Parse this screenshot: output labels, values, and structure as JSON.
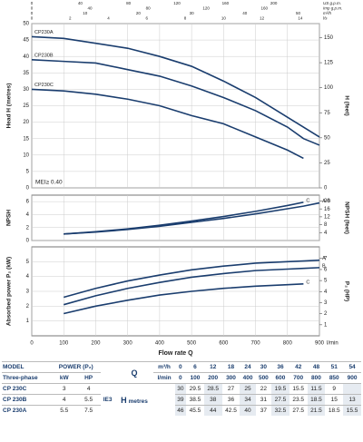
{
  "chart_data": [
    {
      "type": "line",
      "y_label": "Head H (metres)",
      "y2_label": "H (feet)",
      "annotation": "MEI≥ 0.40",
      "x": [
        0,
        100,
        200,
        300,
        400,
        500,
        600,
        700,
        800,
        850,
        900
      ],
      "series": [
        {
          "name": "CP230A",
          "color": "#1a3d6e",
          "values": [
            46,
            45.5,
            44,
            42.5,
            40,
            37,
            32.5,
            27.5,
            21.5,
            18.5,
            15.5
          ]
        },
        {
          "name": "CP230B",
          "color": "#1a3d6e",
          "values": [
            39,
            38.5,
            38,
            36,
            34,
            31,
            27.5,
            23.5,
            18.5,
            15,
            13
          ]
        },
        {
          "name": "CP230C",
          "color": "#1a3d6e",
          "values": [
            30,
            29.5,
            28.5,
            27,
            25,
            22,
            19.5,
            15.5,
            11.5,
            9,
            null
          ]
        }
      ],
      "xlim": [
        0,
        900
      ],
      "xticks": [
        0,
        100,
        200,
        300,
        400,
        500,
        600,
        700,
        800,
        900
      ],
      "ylim": [
        0,
        50
      ],
      "yticks": [
        0,
        5,
        10,
        15,
        20,
        25,
        30,
        35,
        40,
        45,
        50
      ],
      "y2lim": [
        0,
        164.04
      ],
      "y2ticks": [
        0,
        25,
        50,
        75,
        100,
        125,
        150
      ],
      "grid": true,
      "top_axes": [
        {
          "label": "US g.p.m.",
          "lim": [
            0,
            237.75
          ],
          "ticks": [
            0,
            40,
            80,
            120,
            160,
            200
          ]
        },
        {
          "label": "Imp g.p.m.",
          "lim": [
            0,
            197.97
          ],
          "ticks": [
            0,
            40,
            80,
            120,
            160
          ]
        },
        {
          "label": "m³/h",
          "lim": [
            0,
            54
          ],
          "ticks": [
            0,
            10,
            20,
            30,
            40,
            50
          ]
        },
        {
          "label": "l/s",
          "lim": [
            0,
            15
          ],
          "ticks": [
            0,
            2,
            4,
            6,
            8,
            10,
            12,
            14
          ]
        }
      ]
    },
    {
      "type": "line",
      "y_label": "NPSH",
      "y2_label": "NPSH (feet)",
      "x": [
        100,
        200,
        300,
        400,
        500,
        600,
        700,
        800,
        850,
        900
      ],
      "series": [
        {
          "name": "C",
          "color": "#1a3d6e",
          "values": [
            1.0,
            1.35,
            1.8,
            2.35,
            3.0,
            3.7,
            4.5,
            5.4,
            5.9,
            null
          ]
        },
        {
          "name": "A-B",
          "color": "#1a3d6e",
          "values": [
            1.0,
            1.3,
            1.7,
            2.2,
            2.8,
            3.4,
            4.1,
            4.9,
            5.3,
            5.8
          ]
        }
      ],
      "xlim": [
        0,
        900
      ],
      "xticks": [
        0,
        100,
        200,
        300,
        400,
        500,
        600,
        700,
        800,
        900
      ],
      "ylim": [
        0,
        7
      ],
      "yticks": [
        0,
        2,
        4,
        6
      ],
      "y2lim": [
        0,
        22.97
      ],
      "y2ticks": [
        4,
        8,
        12,
        16,
        20
      ],
      "grid": true
    },
    {
      "type": "line",
      "y_label": "Absorbed power P₂ (kW)",
      "y2_label": "P₂ (HP)",
      "x_label": "Flow rate Q",
      "x_unit": "l/min",
      "x": [
        100,
        200,
        300,
        400,
        500,
        600,
        700,
        800,
        850,
        900
      ],
      "series": [
        {
          "name": "A",
          "color": "#1a3d6e",
          "values": [
            2.6,
            3.2,
            3.7,
            4.1,
            4.45,
            4.7,
            4.9,
            5.0,
            5.05,
            5.1
          ]
        },
        {
          "name": "B",
          "color": "#1a3d6e",
          "values": [
            2.1,
            2.7,
            3.2,
            3.6,
            3.95,
            4.2,
            4.4,
            4.5,
            4.55,
            4.6
          ]
        },
        {
          "name": "C",
          "color": "#1a3d6e",
          "values": [
            1.5,
            2.0,
            2.4,
            2.75,
            3.0,
            3.2,
            3.35,
            3.45,
            3.5,
            null
          ]
        }
      ],
      "xlim": [
        0,
        900
      ],
      "xticks": [
        0,
        100,
        200,
        300,
        400,
        500,
        600,
        700,
        800,
        900
      ],
      "ylim": [
        0,
        6
      ],
      "yticks": [
        1,
        2,
        3,
        4,
        5
      ],
      "y2lim": [
        0,
        8.05
      ],
      "y2ticks": [
        1,
        2,
        3,
        4,
        5,
        6,
        7
      ],
      "grid": true
    }
  ],
  "table": {
    "model": "MODEL",
    "power": "POWER (P₂)",
    "q": "Q",
    "m3h_unit": "m³/h",
    "lmin_unit": "l/min",
    "three_phase": "Three-phase",
    "kw": "kW",
    "hp": "HP",
    "m3h": [
      0,
      6,
      12,
      18,
      24,
      30,
      36,
      42,
      48,
      51,
      54
    ],
    "lmin": [
      0,
      100,
      200,
      300,
      400,
      500,
      600,
      700,
      800,
      850,
      900
    ],
    "efficiency_class": "IE3",
    "head": "H",
    "head_unit": "metres",
    "rows": [
      {
        "model": "CP 230C",
        "kw": 3,
        "hp": 4,
        "values": [
          30,
          29.5,
          28.5,
          27,
          25,
          22,
          19.5,
          15.5,
          11.5,
          9,
          null
        ]
      },
      {
        "model": "CP 230B",
        "kw": 4,
        "hp": 5.5,
        "values": [
          39,
          38.5,
          38,
          36,
          34,
          31,
          27.5,
          23.5,
          18.5,
          15,
          13
        ]
      },
      {
        "model": "CP 230A",
        "kw": 5.5,
        "hp": 7.5,
        "values": [
          46,
          45.5,
          44,
          42.5,
          40,
          37,
          32.5,
          27.5,
          21.5,
          18.5,
          15.5
        ]
      }
    ]
  }
}
